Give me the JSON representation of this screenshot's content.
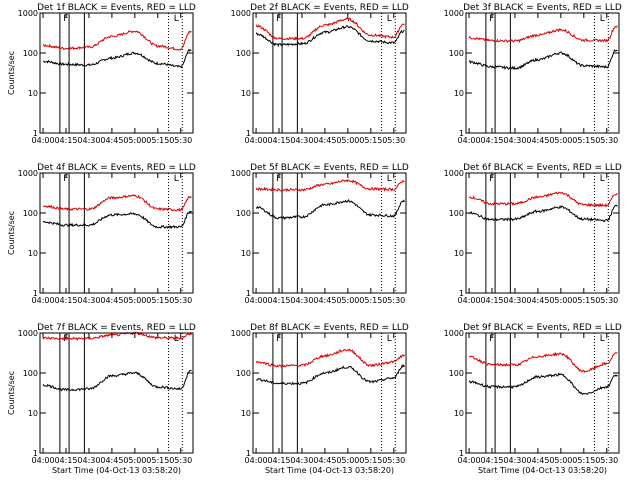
{
  "ylabel": "Counts/sec",
  "xlabel": "Start Time (04-Oct-13 03:58:20)",
  "x_ticks": [
    "04:00",
    "04:15",
    "04:30",
    "04:45",
    "05:00",
    "05:15",
    "05:30"
  ],
  "y_ticks": [
    "1",
    "10",
    "100",
    "1000"
  ],
  "markers": {
    "first": "F",
    "last": "L"
  },
  "colors": {
    "events": "#000000",
    "lld": "#dd0000"
  },
  "chart_data": [
    {
      "type": "line",
      "title": "Det 1f BLACK = Events, RED = LLD",
      "xlabel": "",
      "ylabel": "Counts/sec",
      "ylim": [
        1,
        1000
      ],
      "y_scale": "log",
      "x": [
        "04:00",
        "04:15",
        "04:30",
        "04:45",
        "05:00",
        "05:15",
        "05:30",
        "05:36"
      ],
      "series": [
        {
          "color": "black",
          "values": [
            62,
            52,
            50,
            75,
            100,
            55,
            45,
            120
          ]
        },
        {
          "color": "red",
          "values": [
            155,
            130,
            140,
            260,
            350,
            150,
            125,
            340
          ]
        }
      ]
    },
    {
      "type": "line",
      "title": "Det 2f BLACK = Events, RED = LLD",
      "xlabel": "",
      "ylabel": "",
      "ylim": [
        1,
        1000
      ],
      "y_scale": "log",
      "x": [
        "04:00",
        "04:15",
        "04:30",
        "04:45",
        "05:00",
        "05:15",
        "05:30",
        "05:36"
      ],
      "series": [
        {
          "color": "black",
          "values": [
            300,
            160,
            170,
            330,
            450,
            200,
            180,
            350
          ]
        },
        {
          "color": "red",
          "values": [
            480,
            230,
            230,
            500,
            700,
            280,
            250,
            520
          ]
        }
      ]
    },
    {
      "type": "line",
      "title": "Det 3f BLACK = Events, RED = LLD",
      "xlabel": "",
      "ylabel": "",
      "ylim": [
        1,
        1000
      ],
      "y_scale": "log",
      "x": [
        "04:00",
        "04:15",
        "04:30",
        "04:45",
        "05:00",
        "05:15",
        "05:30",
        "05:36"
      ],
      "series": [
        {
          "color": "black",
          "values": [
            60,
            45,
            42,
            68,
            100,
            48,
            45,
            120
          ]
        },
        {
          "color": "red",
          "values": [
            240,
            205,
            200,
            280,
            380,
            210,
            205,
            460
          ]
        }
      ]
    },
    {
      "type": "line",
      "title": "Det 4f BLACK = Events, RED = LLD",
      "xlabel": "",
      "ylabel": "Counts/sec",
      "ylim": [
        1,
        1000
      ],
      "y_scale": "log",
      "x": [
        "04:00",
        "04:15",
        "04:30",
        "04:45",
        "05:00",
        "05:15",
        "05:30",
        "05:36"
      ],
      "series": [
        {
          "color": "black",
          "values": [
            60,
            50,
            50,
            90,
            95,
            45,
            45,
            110
          ]
        },
        {
          "color": "red",
          "values": [
            150,
            125,
            125,
            240,
            270,
            125,
            120,
            250
          ]
        }
      ]
    },
    {
      "type": "line",
      "title": "Det 5f BLACK = Events, RED = LLD",
      "xlabel": "",
      "ylabel": "",
      "ylim": [
        1,
        1000
      ],
      "y_scale": "log",
      "x": [
        "04:00",
        "04:15",
        "04:30",
        "04:45",
        "05:00",
        "05:15",
        "05:30",
        "05:36"
      ],
      "series": [
        {
          "color": "black",
          "values": [
            140,
            75,
            80,
            160,
            200,
            90,
            85,
            200
          ]
        },
        {
          "color": "red",
          "values": [
            400,
            380,
            380,
            520,
            650,
            400,
            390,
            620
          ]
        }
      ]
    },
    {
      "type": "line",
      "title": "Det 6f BLACK = Events, RED = LLD",
      "xlabel": "",
      "ylabel": "",
      "ylim": [
        1,
        1000
      ],
      "y_scale": "log",
      "x": [
        "04:00",
        "04:15",
        "04:30",
        "04:45",
        "05:00",
        "05:15",
        "05:30",
        "05:36"
      ],
      "series": [
        {
          "color": "black",
          "values": [
            100,
            68,
            70,
            110,
            140,
            70,
            65,
            150
          ]
        },
        {
          "color": "red",
          "values": [
            250,
            170,
            170,
            250,
            320,
            160,
            155,
            300
          ]
        }
      ]
    },
    {
      "type": "line",
      "title": "Det 7f BLACK = Events, RED = LLD",
      "xlabel": "Start Time (04-Oct-13 03:58:20)",
      "ylabel": "Counts/sec",
      "ylim": [
        1,
        1000
      ],
      "y_scale": "log",
      "x": [
        "04:00",
        "04:15",
        "04:30",
        "04:45",
        "05:00",
        "05:15",
        "05:30",
        "05:36"
      ],
      "series": [
        {
          "color": "black",
          "values": [
            50,
            38,
            40,
            85,
            100,
            45,
            40,
            110
          ]
        },
        {
          "color": "red",
          "values": [
            750,
            720,
            730,
            880,
            1000,
            760,
            740,
            950
          ]
        }
      ]
    },
    {
      "type": "line",
      "title": "Det 8f BLACK = Events, RED = LLD",
      "xlabel": "Start Time (04-Oct-13 03:58:20)",
      "ylabel": "",
      "ylim": [
        1,
        1000
      ],
      "y_scale": "log",
      "x": [
        "04:00",
        "04:15",
        "04:30",
        "04:45",
        "05:00",
        "05:15",
        "05:30",
        "05:36"
      ],
      "series": [
        {
          "color": "black",
          "values": [
            70,
            55,
            55,
            100,
            140,
            60,
            75,
            150
          ]
        },
        {
          "color": "red",
          "values": [
            190,
            150,
            155,
            270,
            380,
            155,
            190,
            270
          ]
        }
      ]
    },
    {
      "type": "line",
      "title": "Det 9f BLACK = Events, RED = LLD",
      "xlabel": "Start Time (04-Oct-13 03:58:20)",
      "ylabel": "",
      "ylim": [
        1,
        1000
      ],
      "y_scale": "log",
      "x": [
        "04:00",
        "04:15",
        "04:30",
        "04:45",
        "05:00",
        "05:15",
        "05:30",
        "05:36"
      ],
      "series": [
        {
          "color": "black",
          "values": [
            60,
            45,
            45,
            80,
            90,
            30,
            45,
            90
          ]
        },
        {
          "color": "red",
          "values": [
            250,
            160,
            160,
            260,
            300,
            110,
            170,
            310
          ]
        }
      ]
    }
  ]
}
